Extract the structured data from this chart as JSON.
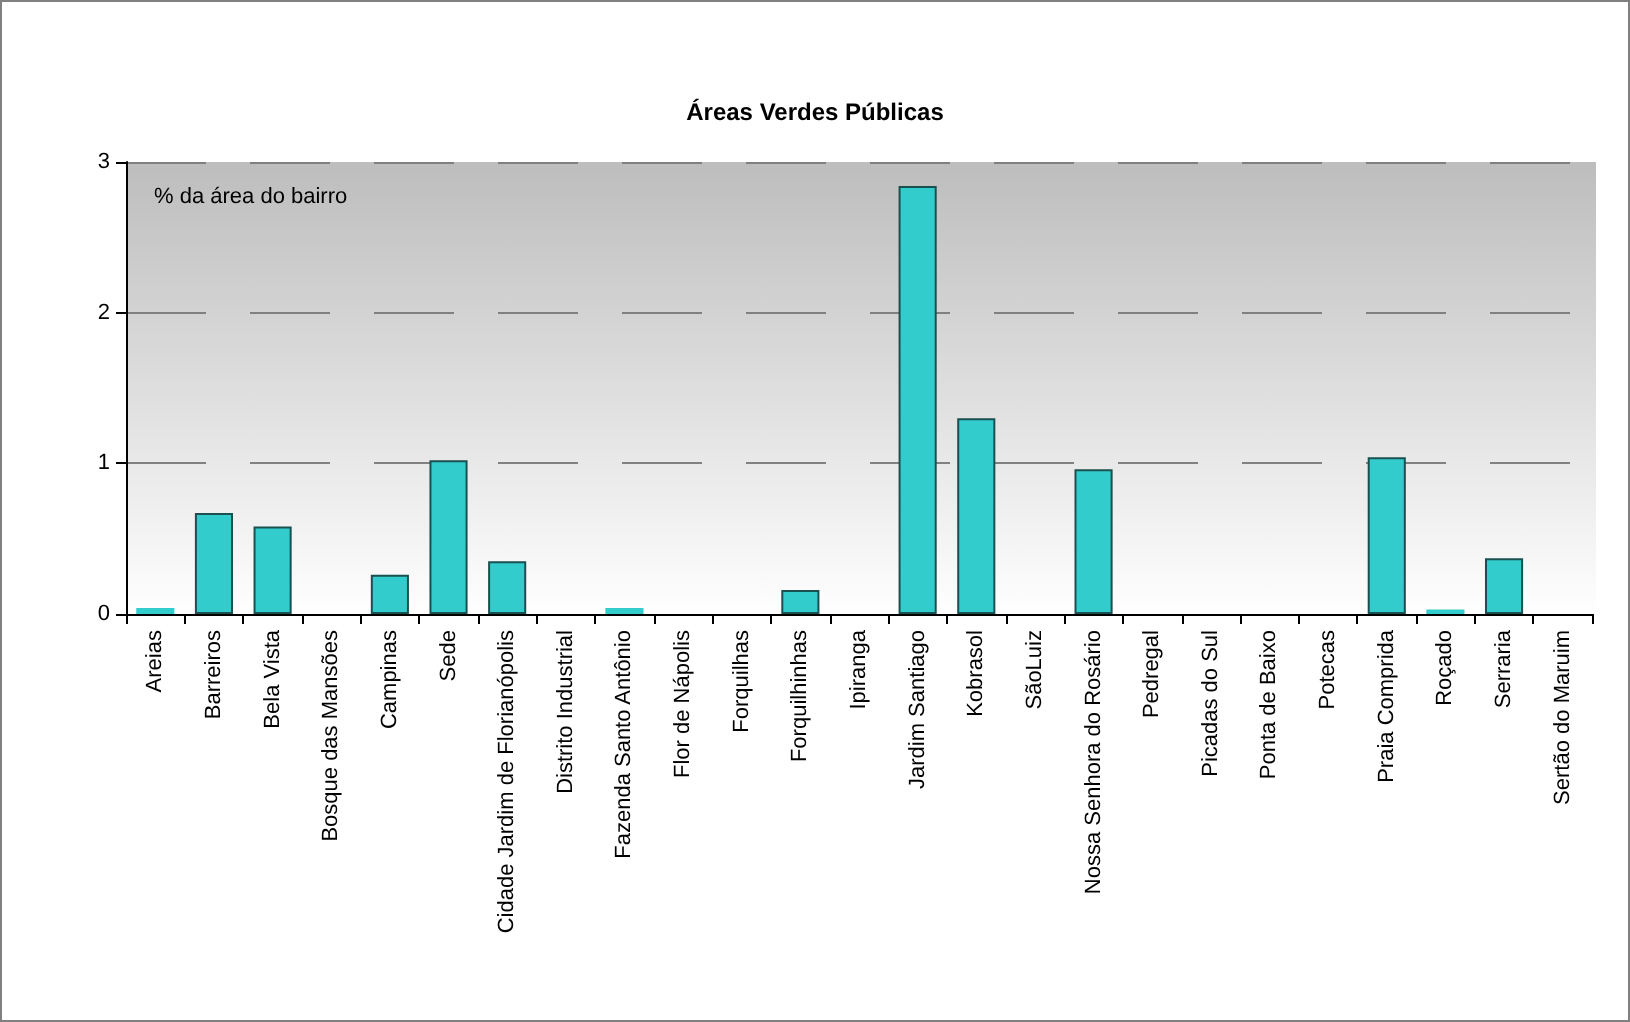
{
  "chart_data": {
    "type": "bar",
    "title": "Áreas Verdes Públicas",
    "annotations": [
      "% da área do bairro"
    ],
    "categories": [
      "Areias",
      "Barreiros",
      "Bela Vista",
      "Bosque das Mansões",
      "Campinas",
      "Sede",
      "Cidade Jardim de Florianópolis",
      "Distrito Industrial",
      "Fazenda Santo Antônio",
      "Flor de Nápolis",
      "Forquilhas",
      "Forquilhinhas",
      "Ipiranga",
      "Jardim Santiago",
      "Kobrasol",
      "SãoLuiz",
      "Nossa Senhora do Rosário",
      "Pedregal",
      "Picadas do Sul",
      "Ponta de Baixo",
      "Potecas",
      "Praia Comprida",
      "Roçado",
      "Serraria",
      "Sertão do Maruim"
    ],
    "values": [
      0.04,
      0.67,
      0.58,
      0,
      0.26,
      1.02,
      0.35,
      0,
      0.04,
      0,
      0,
      0.16,
      0,
      2.84,
      1.3,
      0,
      0.96,
      0,
      0,
      0,
      0,
      1.04,
      0.03,
      0.37,
      0
    ],
    "color": "#33cccc",
    "ylim": [
      0,
      3
    ],
    "yticks": [
      0,
      1,
      2,
      3
    ],
    "grid": "y"
  }
}
